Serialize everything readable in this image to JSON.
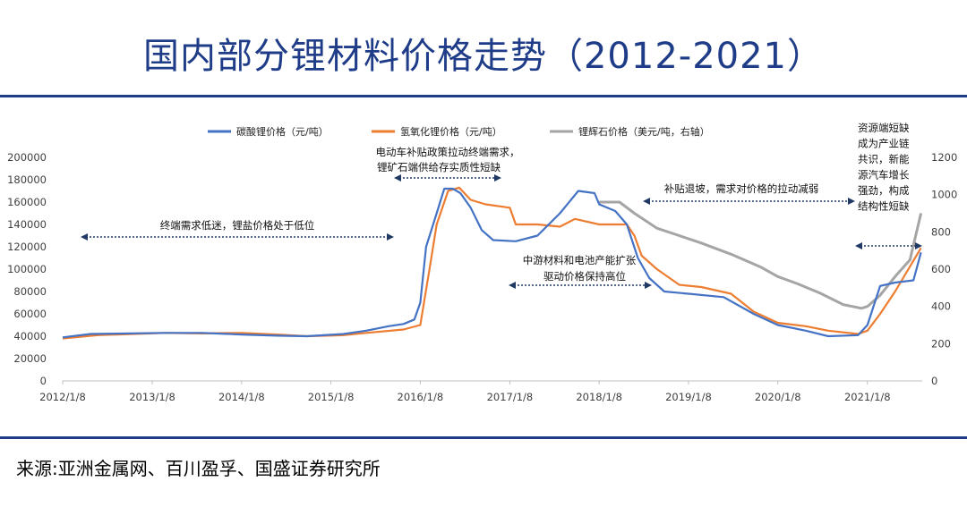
{
  "page": {
    "title": "国内部分锂材料价格走势（2012-2021）",
    "source": "来源:亚洲金属网、百川盈孚、国盛证券研究所"
  },
  "colors": {
    "li2co3": "#4472c4",
    "lioh": "#ed7d31",
    "spodumene": "#a5a5a5",
    "accent": "#1f3c88",
    "arrow": "#1f3864"
  },
  "chart_data": {
    "type": "line",
    "x_ticks": [
      "2012/1/8",
      "2013/1/8",
      "2014/1/8",
      "2015/1/8",
      "2016/1/8",
      "2017/1/8",
      "2018/1/8",
      "2019/1/8",
      "2020/1/8",
      "2021/1/8"
    ],
    "y_left_ticks": [
      "0",
      "20000",
      "40000",
      "60000",
      "80000",
      "100000",
      "120000",
      "140000",
      "160000",
      "180000",
      "200000"
    ],
    "y_right_ticks": [
      "0",
      "200",
      "400",
      "600",
      "800",
      "1000",
      "1200"
    ],
    "ylim_left": [
      0,
      200000
    ],
    "ylim_right": [
      0,
      1200
    ],
    "series": [
      {
        "name": "碳酸锂价格（元/吨）",
        "axis": "left",
        "color": "#4472c4",
        "points": [
          [
            "2012-01-08",
            39000
          ],
          [
            "2012-05-01",
            42000
          ],
          [
            "2013-03-01",
            43000
          ],
          [
            "2013-08-01",
            43000
          ],
          [
            "2014-01-08",
            41500
          ],
          [
            "2014-06-01",
            40500
          ],
          [
            "2014-10-01",
            40000
          ],
          [
            "2015-03-01",
            42000
          ],
          [
            "2015-06-01",
            45000
          ],
          [
            "2015-09-01",
            49000
          ],
          [
            "2015-11-01",
            51000
          ],
          [
            "2015-12-15",
            55000
          ],
          [
            "2016-01-08",
            70000
          ],
          [
            "2016-02-01",
            120000
          ],
          [
            "2016-03-15",
            150000
          ],
          [
            "2016-04-15",
            172000
          ],
          [
            "2016-05-20",
            172000
          ],
          [
            "2016-06-20",
            168000
          ],
          [
            "2016-08-01",
            155000
          ],
          [
            "2016-09-15",
            135000
          ],
          [
            "2016-11-01",
            126000
          ],
          [
            "2017-02-01",
            125000
          ],
          [
            "2017-05-01",
            130000
          ],
          [
            "2017-08-01",
            150000
          ],
          [
            "2017-10-15",
            170000
          ],
          [
            "2017-12-20",
            168000
          ],
          [
            "2018-01-08",
            158000
          ],
          [
            "2018-03-15",
            152000
          ],
          [
            "2018-05-01",
            140000
          ],
          [
            "2018-06-15",
            110000
          ],
          [
            "2018-08-01",
            92000
          ],
          [
            "2018-10-01",
            80000
          ],
          [
            "2019-01-08",
            78000
          ],
          [
            "2019-06-01",
            75000
          ],
          [
            "2019-10-01",
            60000
          ],
          [
            "2020-01-08",
            50000
          ],
          [
            "2020-05-01",
            45000
          ],
          [
            "2020-08-01",
            40000
          ],
          [
            "2020-12-01",
            41000
          ],
          [
            "2021-01-08",
            50000
          ],
          [
            "2021-03-01",
            85000
          ],
          [
            "2021-05-01",
            88000
          ],
          [
            "2021-07-15",
            90000
          ],
          [
            "2021-08-15",
            115000
          ]
        ]
      },
      {
        "name": "氢氧化锂价格（元/吨）",
        "axis": "left",
        "color": "#ed7d31",
        "points": [
          [
            "2012-01-08",
            38000
          ],
          [
            "2012-06-01",
            41000
          ],
          [
            "2013-03-01",
            43000
          ],
          [
            "2013-08-01",
            42500
          ],
          [
            "2014-01-08",
            43000
          ],
          [
            "2014-06-01",
            41500
          ],
          [
            "2014-10-01",
            40000
          ],
          [
            "2015-03-01",
            41000
          ],
          [
            "2015-06-01",
            43000
          ],
          [
            "2015-11-01",
            46000
          ],
          [
            "2016-01-08",
            50000
          ],
          [
            "2016-02-15",
            100000
          ],
          [
            "2016-03-15",
            140000
          ],
          [
            "2016-05-01",
            170000
          ],
          [
            "2016-06-15",
            173000
          ],
          [
            "2016-08-01",
            162000
          ],
          [
            "2016-10-01",
            158000
          ],
          [
            "2017-01-08",
            155000
          ],
          [
            "2017-02-01",
            140000
          ],
          [
            "2017-05-01",
            140000
          ],
          [
            "2017-08-01",
            138000
          ],
          [
            "2017-10-01",
            145000
          ],
          [
            "2018-01-08",
            140000
          ],
          [
            "2018-05-01",
            140000
          ],
          [
            "2018-06-01",
            130000
          ],
          [
            "2018-07-01",
            112000
          ],
          [
            "2018-09-01",
            100000
          ],
          [
            "2018-12-01",
            86000
          ],
          [
            "2019-03-01",
            84000
          ],
          [
            "2019-07-01",
            78000
          ],
          [
            "2019-10-01",
            62000
          ],
          [
            "2020-01-08",
            52000
          ],
          [
            "2020-05-01",
            49000
          ],
          [
            "2020-08-01",
            45000
          ],
          [
            "2020-12-01",
            42000
          ],
          [
            "2021-01-08",
            45000
          ],
          [
            "2021-03-01",
            60000
          ],
          [
            "2021-05-01",
            80000
          ],
          [
            "2021-08-15",
            119000
          ]
        ]
      },
      {
        "name": "锂辉石价格（美元/吨，右轴）",
        "axis": "right",
        "color": "#a5a5a5",
        "points": [
          [
            "2018-01-08",
            960
          ],
          [
            "2018-04-01",
            960
          ],
          [
            "2018-06-01",
            900
          ],
          [
            "2018-09-01",
            820
          ],
          [
            "2018-12-01",
            780
          ],
          [
            "2019-03-01",
            740
          ],
          [
            "2019-07-01",
            680
          ],
          [
            "2019-11-01",
            610
          ],
          [
            "2020-01-08",
            560
          ],
          [
            "2020-04-01",
            520
          ],
          [
            "2020-07-01",
            470
          ],
          [
            "2020-10-01",
            410
          ],
          [
            "2020-12-15",
            390
          ],
          [
            "2021-01-08",
            400
          ],
          [
            "2021-03-01",
            460
          ],
          [
            "2021-05-01",
            560
          ],
          [
            "2021-07-01",
            650
          ],
          [
            "2021-08-15",
            900
          ]
        ]
      }
    ],
    "annotations": [
      {
        "id": "a1",
        "text": "终端需求低迷，锂盐价格处于低位"
      },
      {
        "id": "a2",
        "text": "电动车补贴政策拉动终端需求，"
      },
      {
        "id": "a2b",
        "text": "锂矿石端供给存实质性短缺"
      },
      {
        "id": "a3",
        "text": "中游材料和电池产能扩张"
      },
      {
        "id": "a3b",
        "text": "驱动价格保持高位"
      },
      {
        "id": "a4",
        "text": "补贴退坡，需求对价格的拉动减弱"
      },
      {
        "id": "a5",
        "lines": [
          "资源端短缺",
          "成为产业链",
          "共识，新能",
          "源汽车增长",
          "强劲，构成",
          "结构性短缺"
        ]
      }
    ]
  }
}
